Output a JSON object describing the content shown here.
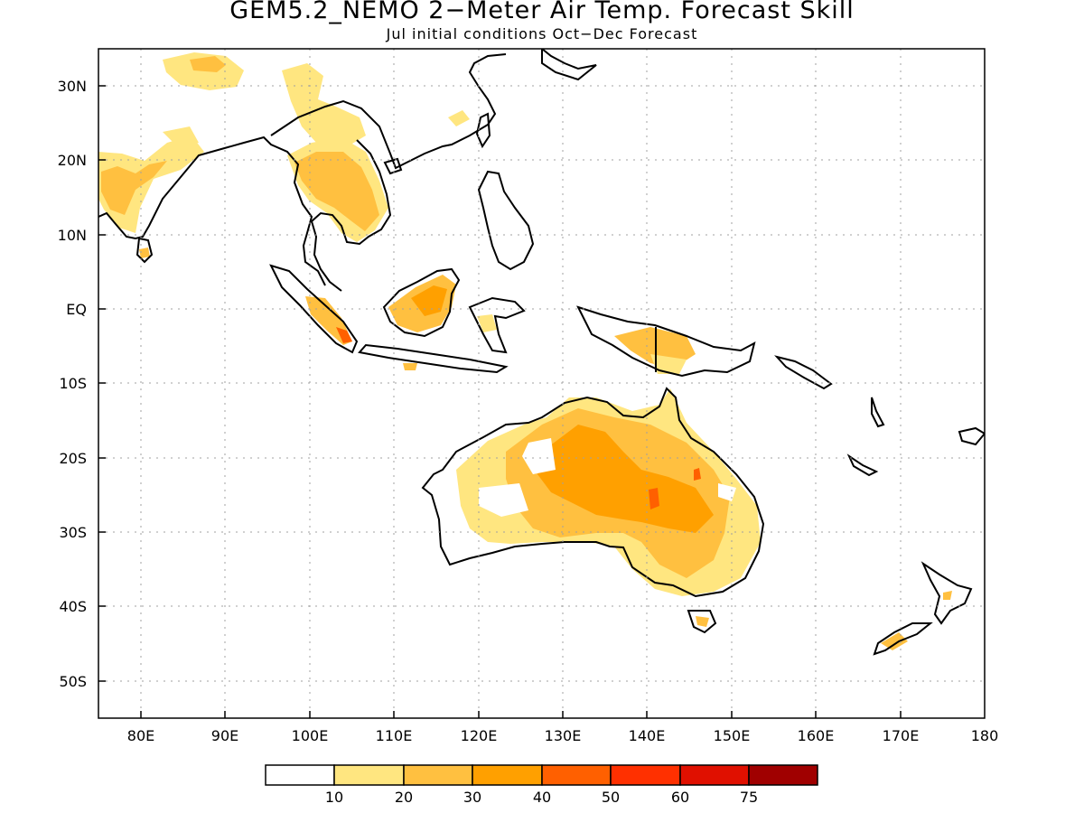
{
  "title": "GEM5.2_NEMO 2−Meter Air Temp. Forecast Skill",
  "subtitle": "Jul initial conditions  Oct−Dec Forecast",
  "chart_data": {
    "type": "heatmap",
    "lon_range": [
      75,
      180
    ],
    "lat_range": [
      -55,
      35
    ],
    "grid": true,
    "x_ticks": [
      {
        "value": 80,
        "label": "80E"
      },
      {
        "value": 90,
        "label": "90E"
      },
      {
        "value": 100,
        "label": "100E"
      },
      {
        "value": 110,
        "label": "110E"
      },
      {
        "value": 120,
        "label": "120E"
      },
      {
        "value": 130,
        "label": "130E"
      },
      {
        "value": 140,
        "label": "140E"
      },
      {
        "value": 150,
        "label": "150E"
      },
      {
        "value": 160,
        "label": "160E"
      },
      {
        "value": 170,
        "label": "170E"
      },
      {
        "value": 180,
        "label": "180"
      }
    ],
    "y_ticks": [
      {
        "value": 30,
        "label": "30N"
      },
      {
        "value": 20,
        "label": "20N"
      },
      {
        "value": 10,
        "label": "10N"
      },
      {
        "value": 0,
        "label": "EQ"
      },
      {
        "value": -10,
        "label": "10S"
      },
      {
        "value": -20,
        "label": "20S"
      },
      {
        "value": -30,
        "label": "30S"
      },
      {
        "value": -40,
        "label": "40S"
      },
      {
        "value": -50,
        "label": "50S"
      }
    ],
    "legend": {
      "colors": [
        "#ffffff",
        "#ffe680",
        "#ffc040",
        "#ffa000",
        "#ff6000",
        "#ff3000",
        "#e01000",
        "#a00000"
      ],
      "labels": [
        "10",
        "20",
        "30",
        "40",
        "50",
        "60",
        "75"
      ]
    }
  }
}
